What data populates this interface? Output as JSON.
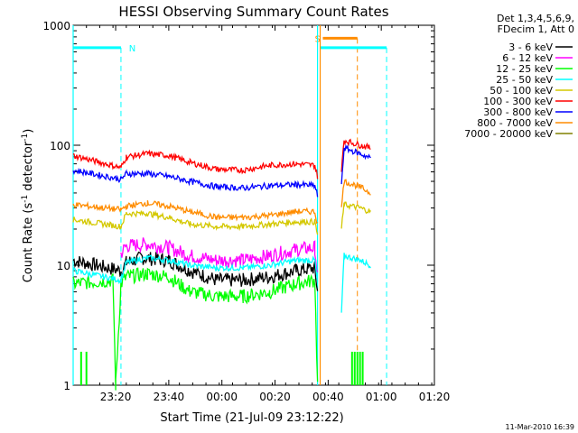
{
  "chart_data": {
    "type": "line",
    "title": "HESSI Observing Summary Count Rates",
    "xlabel": "Start Time (21-Jul-09 23:12:22)",
    "ylabel_main": "Count Rate (s",
    "ylabel_sup1": "-1",
    "ylabel_mid": " detector",
    "ylabel_sup2": "-1",
    "ylabel_end": ")",
    "y_scale": "log",
    "ylim": [
      1,
      1000
    ],
    "xlim_min": [
      -8,
      128
    ],
    "x_ticks_min": [
      8,
      28,
      48,
      68,
      88,
      108,
      128
    ],
    "x_tick_labels": [
      "23:20",
      "23:40",
      "00:00",
      "00:20",
      "00:40",
      "01:00",
      "01:20"
    ],
    "y_tick_labels": [
      {
        "value": 1,
        "label": "1"
      },
      {
        "value": 10,
        "label": "10"
      },
      {
        "value": 100,
        "label": "100"
      },
      {
        "value": 1000,
        "label": "1000"
      }
    ],
    "legend_header": [
      "Det 1,3,4,5,6,9,",
      "FDecim 1, Att 0"
    ],
    "legend_position": "right, outside plot",
    "series": [
      {
        "name": "3 - 6 keV",
        "color": "#000000",
        "points": [
          [
            -8,
            11
          ],
          [
            10,
            9
          ],
          [
            12,
            10.5
          ],
          [
            18,
            11.5
          ],
          [
            28,
            11
          ],
          [
            36,
            9
          ],
          [
            46,
            7.5
          ],
          [
            56,
            7.5
          ],
          [
            66,
            8
          ],
          [
            76,
            9
          ],
          [
            83,
            9.5
          ],
          [
            84,
            6
          ]
        ],
        "seg2": [
          [
            93,
            null
          ]
        ]
      },
      {
        "name": "6 - 12 keV",
        "color": "#ff00ff",
        "points": [
          [
            10,
            12.5
          ],
          [
            12,
            14.5
          ],
          [
            20,
            15
          ],
          [
            28,
            14
          ],
          [
            36,
            12
          ],
          [
            46,
            11
          ],
          [
            56,
            11
          ],
          [
            66,
            12
          ],
          [
            76,
            13.5
          ],
          [
            83,
            14
          ],
          [
            84,
            8
          ]
        ]
      },
      {
        "name": "12 - 25 keV",
        "color": "#00ff00",
        "points": [
          [
            -8,
            7
          ],
          [
            7,
            7.5
          ],
          [
            8,
            1
          ],
          [
            10,
            7
          ],
          [
            12,
            8
          ],
          [
            20,
            8.5
          ],
          [
            28,
            8
          ],
          [
            36,
            6
          ],
          [
            46,
            5.5
          ],
          [
            56,
            5.5
          ],
          [
            66,
            6
          ],
          [
            76,
            7
          ],
          [
            83,
            7.5
          ],
          [
            84,
            1
          ]
        ],
        "spikes_low": [
          [
            -5,
            1.9
          ],
          [
            -3,
            1.9
          ],
          [
            97,
            1.9
          ],
          [
            98,
            1.9
          ],
          [
            99,
            1.9
          ],
          [
            100,
            1.9
          ],
          [
            101,
            1.9
          ]
        ]
      },
      {
        "name": "25 - 50 keV",
        "color": "#00ffff",
        "points": [
          [
            -8,
            9
          ],
          [
            10,
            7.5
          ],
          [
            12,
            10.5
          ],
          [
            20,
            11.5
          ],
          [
            28,
            11
          ],
          [
            36,
            10
          ],
          [
            46,
            9.5
          ],
          [
            56,
            9.5
          ],
          [
            66,
            10
          ],
          [
            76,
            11
          ],
          [
            83,
            11
          ],
          [
            84,
            7
          ]
        ],
        "seg2": [
          [
            93,
            4
          ],
          [
            94,
            12
          ],
          [
            100,
            11
          ],
          [
            104,
            10
          ]
        ]
      },
      {
        "name": "50 - 100 keV",
        "color": "#d4c800",
        "points": [
          [
            -8,
            24
          ],
          [
            10,
            21
          ],
          [
            12,
            27
          ],
          [
            20,
            27
          ],
          [
            28,
            25
          ],
          [
            36,
            22
          ],
          [
            46,
            21
          ],
          [
            56,
            21
          ],
          [
            66,
            22
          ],
          [
            76,
            23
          ],
          [
            83,
            23
          ],
          [
            84,
            18
          ]
        ],
        "seg2": [
          [
            93,
            20
          ],
          [
            94,
            32
          ],
          [
            100,
            30
          ],
          [
            104,
            28
          ]
        ]
      },
      {
        "name": "100 - 300 keV",
        "color": "#ff0000",
        "points": [
          [
            -8,
            82
          ],
          [
            10,
            65
          ],
          [
            12,
            80
          ],
          [
            20,
            85
          ],
          [
            28,
            82
          ],
          [
            36,
            72
          ],
          [
            46,
            63
          ],
          [
            56,
            62
          ],
          [
            66,
            68
          ],
          [
            76,
            70
          ],
          [
            83,
            68
          ],
          [
            84,
            55
          ]
        ],
        "seg2": [
          [
            93,
            60
          ],
          [
            94,
            110
          ],
          [
            100,
            100
          ],
          [
            104,
            95
          ]
        ]
      },
      {
        "name": "300 - 800 keV",
        "color": "#0000ff",
        "points": [
          [
            -8,
            62
          ],
          [
            10,
            52
          ],
          [
            12,
            58
          ],
          [
            20,
            58
          ],
          [
            28,
            55
          ],
          [
            36,
            50
          ],
          [
            46,
            45
          ],
          [
            56,
            44
          ],
          [
            66,
            46
          ],
          [
            76,
            47
          ],
          [
            83,
            46
          ],
          [
            84,
            38
          ]
        ],
        "seg2": [
          [
            93,
            45
          ],
          [
            94,
            95
          ],
          [
            100,
            85
          ],
          [
            104,
            78
          ]
        ]
      },
      {
        "name": "800 - 7000 keV",
        "color": "#ff8c00",
        "points": [
          [
            -8,
            32
          ],
          [
            10,
            29
          ],
          [
            12,
            31
          ],
          [
            20,
            33
          ],
          [
            28,
            31
          ],
          [
            36,
            28
          ],
          [
            46,
            25
          ],
          [
            56,
            25
          ],
          [
            66,
            26
          ],
          [
            76,
            28
          ],
          [
            83,
            28
          ],
          [
            84,
            22
          ]
        ],
        "seg2": [
          [
            93,
            30
          ],
          [
            94,
            50
          ],
          [
            100,
            45
          ],
          [
            104,
            40
          ]
        ]
      },
      {
        "name": "7000 - 20000 keV",
        "color": "#808000",
        "points": []
      }
    ],
    "markers": [
      {
        "label": "N",
        "color": "#00ffff",
        "x_start": -8,
        "x_end": 10,
        "y": 650,
        "dash_x": 10
      },
      {
        "label": "S",
        "color": "#ff8c00",
        "x_start": 86,
        "x_end": 99,
        "y": 780,
        "dash_x": 99
      },
      {
        "label": "",
        "color": "#00ffff",
        "x_start": 85,
        "x_end": 110,
        "y": 650,
        "dash_x": 110
      }
    ],
    "solid_verticals": [
      {
        "x": 84,
        "color": "#00ffff"
      },
      {
        "x": 85,
        "color": "#ff8c00"
      },
      {
        "x": -8,
        "color": "#00ffff"
      }
    ]
  },
  "timestamp": "11-Mar-2010 16:39"
}
